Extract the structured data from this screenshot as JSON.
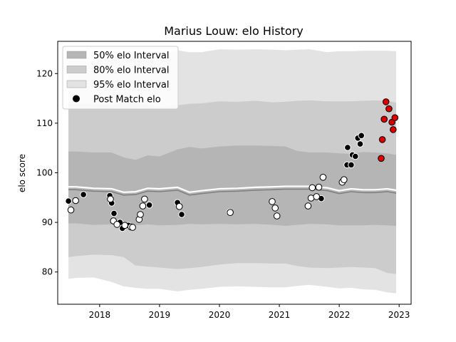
{
  "chart_data": {
    "type": "scatter",
    "title": "Marius Louw: elo History",
    "xlabel": "",
    "ylabel": "elo score",
    "xlim": [
      2017.3,
      2023.2
    ],
    "ylim": [
      73.5,
      126.5
    ],
    "x_ticks": [
      {
        "value": 2018,
        "label": "2018"
      },
      {
        "value": 2019,
        "label": "2019"
      },
      {
        "value": 2020,
        "label": "2020"
      },
      {
        "value": 2021,
        "label": "2021"
      },
      {
        "value": 2022,
        "label": "2022"
      },
      {
        "value": 2023,
        "label": "2023"
      }
    ],
    "y_ticks": [
      {
        "value": 80,
        "label": "80"
      },
      {
        "value": 90,
        "label": "90"
      },
      {
        "value": 100,
        "label": "100"
      },
      {
        "value": 110,
        "label": "110"
      },
      {
        "value": 120,
        "label": "120"
      }
    ],
    "legend_position": "top-left",
    "legend": [
      {
        "label": "50% elo Interval",
        "kind": "band",
        "color": "#b5b5b5"
      },
      {
        "label": "80% elo Interval",
        "kind": "band",
        "color": "#cccccc"
      },
      {
        "label": "95% elo Interval",
        "kind": "band",
        "color": "#e3e3e3"
      },
      {
        "label": "Post Match elo",
        "kind": "marker",
        "color": "#000000"
      }
    ],
    "bands": {
      "x": [
        2017.48,
        2017.6,
        2017.9,
        2018.2,
        2018.4,
        2018.6,
        2018.8,
        2019.0,
        2019.3,
        2019.5,
        2019.7,
        2020.0,
        2020.3,
        2020.6,
        2020.9,
        2021.1,
        2021.3,
        2021.5,
        2021.8,
        2022.0,
        2022.2,
        2022.4,
        2022.6,
        2022.8,
        2022.95
      ],
      "center": [
        96.6,
        96.6,
        96.3,
        96.2,
        95.5,
        95.6,
        96.3,
        96.2,
        96.5,
        95.5,
        95.8,
        96.2,
        96.3,
        96.5,
        96.6,
        96.7,
        96.7,
        96.7,
        96.4,
        95.8,
        96.2,
        96.0,
        96.0,
        96.2,
        95.9
      ],
      "fifty_upper": [
        104.3,
        104.3,
        104.1,
        104.1,
        103.1,
        102.6,
        103.5,
        103.3,
        104.7,
        105.2,
        104.9,
        105.3,
        105.5,
        105.5,
        105.4,
        105.3,
        104.4,
        104.1,
        104.1,
        103.9,
        103.8,
        104.2,
        104.1,
        103.9,
        103.6
      ],
      "fifty_lower": [
        89.8,
        89.8,
        89.5,
        89.6,
        89.1,
        89.4,
        89.6,
        89.4,
        89.5,
        89.7,
        89.6,
        89.7,
        89.6,
        89.7,
        89.5,
        89.3,
        89.5,
        89.7,
        89.6,
        89.4,
        89.4,
        89.4,
        89.5,
        89.4,
        89.3
      ],
      "eighty_upper": [
        114.0,
        114.0,
        113.9,
        113.6,
        114.2,
        114.2,
        113.6,
        113.1,
        113.6,
        113.9,
        114.0,
        114.4,
        114.3,
        114.5,
        114.2,
        114.3,
        114.5,
        114.6,
        114.4,
        114.4,
        114.4,
        114.5,
        114.6,
        114.5,
        114.1
      ],
      "eighty_lower": [
        83.0,
        83.2,
        83.5,
        83.4,
        83.0,
        81.3,
        81.1,
        80.9,
        80.6,
        80.8,
        81.0,
        81.5,
        81.8,
        81.8,
        81.7,
        81.7,
        81.2,
        80.9,
        80.8,
        80.9,
        81.0,
        80.9,
        80.8,
        79.8,
        79.6
      ],
      "ninetyfive_upper": [
        122.4,
        122.4,
        122.5,
        122.9,
        124.6,
        124.4,
        123.3,
        123.7,
        124.7,
        124.3,
        124.3,
        124.9,
        124.8,
        124.9,
        124.8,
        124.7,
        124.8,
        124.9,
        124.3,
        124.5,
        124.5,
        124.6,
        124.6,
        124.6,
        124.5
      ],
      "ninetyfive_lower": [
        78.6,
        78.8,
        78.9,
        78.0,
        77.1,
        76.8,
        76.6,
        76.6,
        76.1,
        76.4,
        76.6,
        77.0,
        77.1,
        77.0,
        76.9,
        76.9,
        77.2,
        77.4,
        77.0,
        76.7,
        76.8,
        76.5,
        76.4,
        75.9,
        75.7
      ]
    },
    "series": [
      {
        "name": "Post Match elo",
        "fill": "#000000",
        "x": [
          2017.48,
          2017.73,
          2018.17,
          2018.2,
          2018.24,
          2018.48,
          2018.83,
          2019.3,
          2019.37,
          2020.17,
          2022.14,
          2022.31,
          2022.35,
          2022.37,
          2022.22,
          2022.13,
          2022.27,
          2022.2,
          2021.7,
          2018.34,
          2018.38
        ],
        "y": [
          94.3,
          95.6,
          95.4,
          93.9,
          91.8,
          89.4,
          93.5,
          94.0,
          91.6,
          92.1,
          105.1,
          107.0,
          105.8,
          107.5,
          103.6,
          101.6,
          103.3,
          101.6,
          94.8,
          90.0,
          88.8
        ]
      },
      {
        "name": "Post Match elo",
        "fill": "#ffffff",
        "x": [
          2017.52,
          2017.6,
          2018.18,
          2018.23,
          2018.29,
          2018.42,
          2018.52,
          2018.55,
          2018.66,
          2018.68,
          2018.72,
          2018.75,
          2019.33,
          2020.18,
          2020.88,
          2020.93,
          2020.96,
          2021.48,
          2021.53,
          2021.55,
          2021.62,
          2021.66,
          2021.73,
          2022.05,
          2022.08
        ],
        "y": [
          92.5,
          94.4,
          94.7,
          90.3,
          89.6,
          89.4,
          89.1,
          89.0,
          90.6,
          91.6,
          93.3,
          94.7,
          93.2,
          92.0,
          94.2,
          92.9,
          91.3,
          93.3,
          94.9,
          97.0,
          95.2,
          97.1,
          99.1,
          98.1,
          98.6
        ]
      },
      {
        "name": "Post Match elo",
        "fill": "#dd0000",
        "x": [
          2022.7,
          2022.72,
          2022.75,
          2022.78,
          2022.83,
          2022.88,
          2022.93
        ],
        "y": [
          102.9,
          106.7,
          110.8,
          114.3,
          112.9,
          110.2,
          111.1
        ]
      },
      {
        "name": "Post Match elo",
        "fill": "#dd0000",
        "x": [
          2022.9
        ],
        "y": [
          108.7
        ]
      }
    ]
  }
}
